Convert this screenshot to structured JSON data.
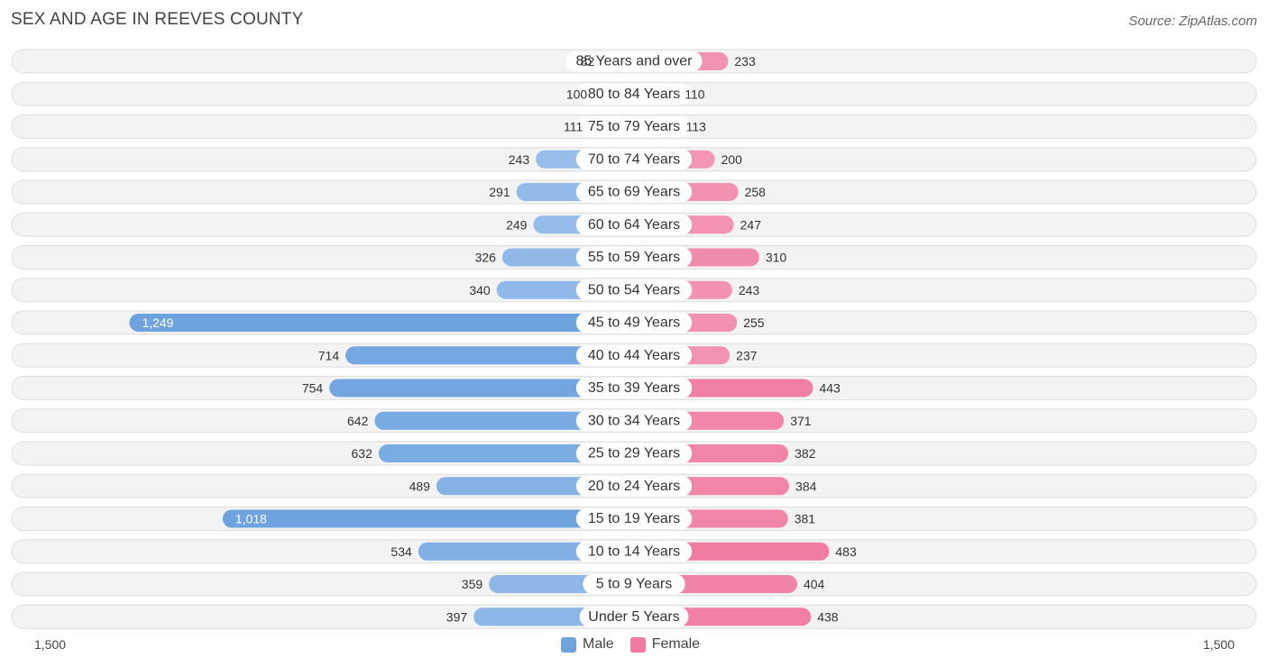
{
  "title": "SEX AND AGE IN REEVES COUNTY",
  "source": "Source: ZipAtlas.com",
  "axis": {
    "left_label": "1,500",
    "right_label": "1,500"
  },
  "legend": {
    "male_label": "Male",
    "female_label": "Female"
  },
  "colors": {
    "male": "#6fa3e0",
    "male_light": "#a8c8ee",
    "female": "#f07aa0",
    "female_light": "#f5a9c2"
  },
  "chart_data": {
    "type": "bar",
    "orientation": "horizontal-diverging",
    "title": "SEX AND AGE IN REEVES COUNTY",
    "xlim": [
      -1500,
      1500
    ],
    "categories": [
      "85 Years and over",
      "80 to 84 Years",
      "75 to 79 Years",
      "70 to 74 Years",
      "65 to 69 Years",
      "60 to 64 Years",
      "55 to 59 Years",
      "50 to 54 Years",
      "45 to 49 Years",
      "40 to 44 Years",
      "35 to 39 Years",
      "30 to 34 Years",
      "25 to 29 Years",
      "20 to 24 Years",
      "15 to 19 Years",
      "10 to 14 Years",
      "5 to 9 Years",
      "Under 5 Years"
    ],
    "series": [
      {
        "name": "Male",
        "values": [
          82,
          100,
          111,
          243,
          291,
          249,
          326,
          340,
          1249,
          714,
          754,
          642,
          632,
          489,
          1018,
          534,
          359,
          397
        ],
        "labels": [
          "82",
          "100",
          "111",
          "243",
          "291",
          "249",
          "326",
          "340",
          "1,249",
          "714",
          "754",
          "642",
          "632",
          "489",
          "1,018",
          "534",
          "359",
          "397"
        ]
      },
      {
        "name": "Female",
        "values": [
          233,
          110,
          113,
          200,
          258,
          247,
          310,
          243,
          255,
          237,
          443,
          371,
          382,
          384,
          381,
          483,
          404,
          438
        ],
        "labels": [
          "233",
          "110",
          "113",
          "200",
          "258",
          "247",
          "310",
          "243",
          "255",
          "237",
          "443",
          "371",
          "382",
          "384",
          "381",
          "483",
          "404",
          "438"
        ]
      }
    ],
    "legend_position": "bottom-center"
  }
}
